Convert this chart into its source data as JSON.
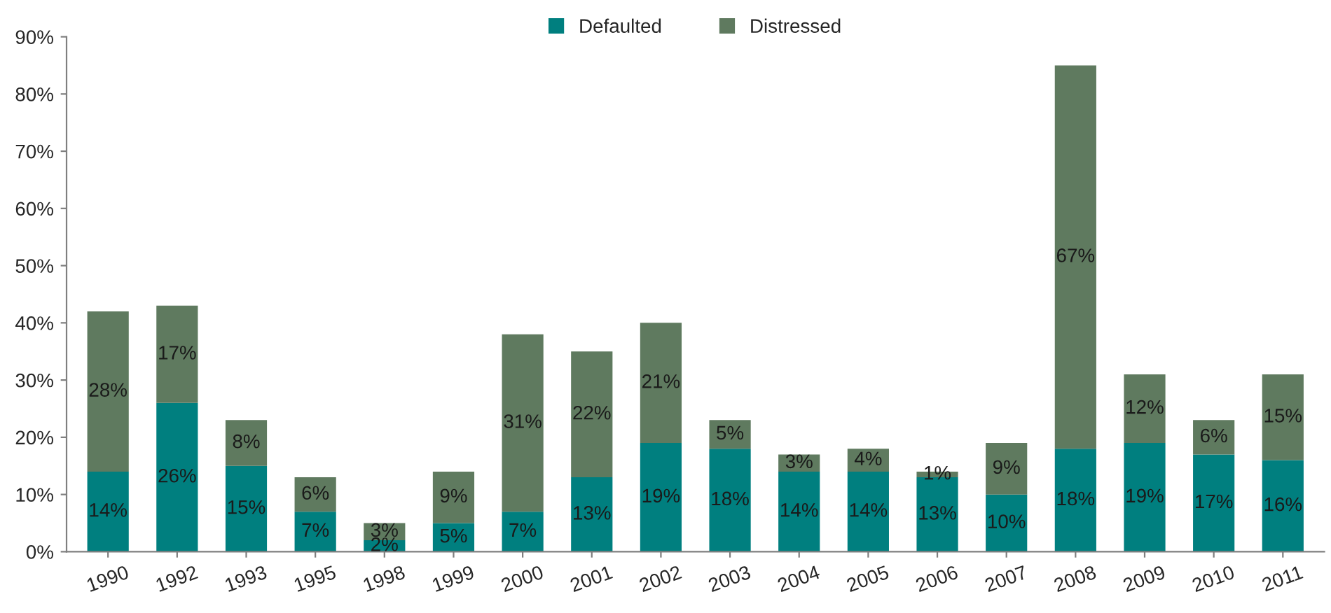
{
  "chart_data": {
    "type": "bar",
    "stacked": true,
    "legend": "top",
    "grid": false,
    "categories": [
      "1990",
      "1992",
      "1993",
      "1995",
      "1998",
      "1999",
      "2000",
      "2001",
      "2002",
      "2003",
      "2004",
      "2005",
      "2006",
      "2007",
      "2008",
      "2009",
      "2010",
      "2011"
    ],
    "ylim": [
      0,
      90
    ],
    "yticks": [
      {
        "value": 0,
        "label": "0%"
      },
      {
        "value": 10,
        "label": "10%"
      },
      {
        "value": 20,
        "label": "20%"
      },
      {
        "value": 30,
        "label": "30%"
      },
      {
        "value": 40,
        "label": "40%"
      },
      {
        "value": 50,
        "label": "50%"
      },
      {
        "value": 60,
        "label": "60%"
      },
      {
        "value": 70,
        "label": "70%"
      },
      {
        "value": 80,
        "label": "80%"
      },
      {
        "value": 90,
        "label": "90%"
      }
    ],
    "series": [
      {
        "name": "Defaulted",
        "color": "#007f7f",
        "values": [
          14,
          26,
          15,
          7,
          2,
          5,
          7,
          13,
          19,
          18,
          14,
          14,
          13,
          10,
          18,
          19,
          17,
          16
        ],
        "value_labels": [
          "14%",
          "26%",
          "15%",
          "7%",
          "2%",
          "5%",
          "7%",
          "13%",
          "19%",
          "18%",
          "14%",
          "14%",
          "13%",
          "10%",
          "18%",
          "19%",
          "17%",
          "16%"
        ]
      },
      {
        "name": "Distressed",
        "color": "#5f7a5f",
        "values": [
          28,
          17,
          8,
          6,
          3,
          9,
          31,
          22,
          21,
          5,
          3,
          4,
          1,
          9,
          67,
          12,
          6,
          15
        ],
        "value_labels": [
          "28%",
          "17%",
          "8%",
          "6%",
          "3%",
          "9%",
          "31%",
          "22%",
          "21%",
          "5%",
          "3%",
          "4%",
          "1%",
          "9%",
          "67%",
          "12%",
          "6%",
          "15%"
        ]
      }
    ]
  }
}
